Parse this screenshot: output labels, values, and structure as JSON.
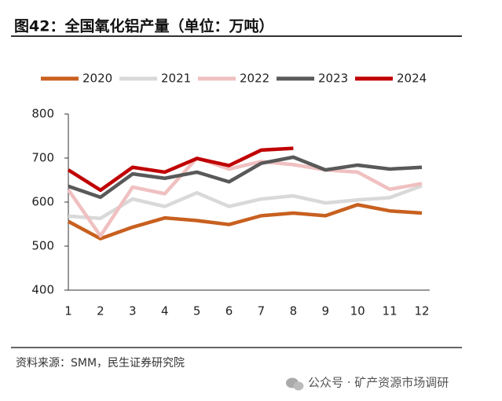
{
  "chart_data": {
    "type": "line",
    "title": "图42：全国氧化铝产量（单位：万吨）",
    "source": "资料来源：SMM，民生证券研究院",
    "watermark": "公众号 · 矿产资源市场调研",
    "categories": [
      "1",
      "2",
      "3",
      "4",
      "5",
      "6",
      "7",
      "8",
      "9",
      "10",
      "11",
      "12"
    ],
    "ylim": [
      400,
      800
    ],
    "yticks": [
      400,
      500,
      600,
      700,
      800
    ],
    "legend": "top",
    "series": [
      {
        "name": "2020",
        "color": "#c8601f",
        "values": [
          556,
          517,
          543,
          564,
          558,
          549,
          569,
          575,
          569,
          594,
          580,
          575
        ]
      },
      {
        "name": "2021",
        "color": "#d9d9d9",
        "values": [
          568,
          563,
          607,
          590,
          621,
          590,
          607,
          614,
          598,
          605,
          610,
          637
        ]
      },
      {
        "name": "2022",
        "color": "#f0c0c0",
        "values": [
          628,
          523,
          634,
          619,
          700,
          675,
          692,
          685,
          673,
          668,
          629,
          642
        ]
      },
      {
        "name": "2023",
        "color": "#595959",
        "values": [
          636,
          611,
          664,
          654,
          668,
          646,
          688,
          702,
          673,
          684,
          675,
          679
        ]
      },
      {
        "name": "2024",
        "color": "#c00000",
        "values": [
          673,
          627,
          679,
          668,
          699,
          683,
          718,
          722,
          null,
          null,
          null,
          null
        ]
      }
    ]
  }
}
